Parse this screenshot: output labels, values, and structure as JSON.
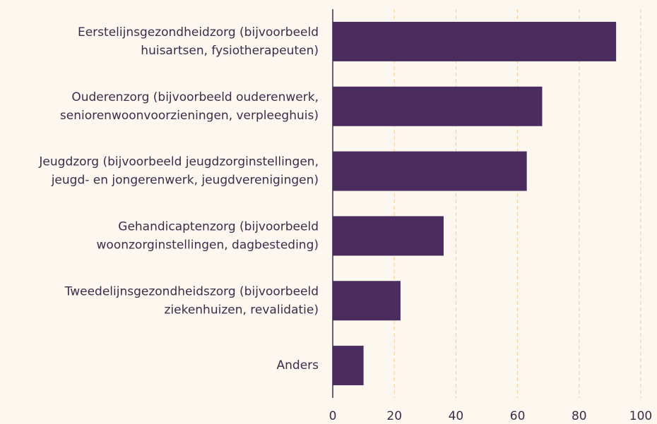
{
  "chart_data": {
    "type": "barh",
    "categories": [
      [
        "Eerstelijnsgezondheidzorg (bijvoorbeeld",
        "huisartsen, fysiotherapeuten)"
      ],
      [
        "Ouderenzorg (bijvoorbeeld ouderenwerk,",
        "seniorenwoonvoorzieningen, verpleeghuis)"
      ],
      [
        "Jeugdzorg (bijvoorbeeld jeugdzorginstellingen,",
        "jeugd- en jongerenwerk, jeugdverenigingen)"
      ],
      [
        "Gehandicaptenzorg (bijvoorbeeld",
        "woonzorginstellingen, dagbesteding)"
      ],
      [
        "Tweedelijnsgezondheidszorg (bijvoorbeeld",
        "ziekenhuizen, revalidatie)"
      ],
      [
        "Anders"
      ]
    ],
    "values": [
      92,
      68,
      63,
      36,
      22,
      10
    ],
    "color": "#4a2d5e",
    "xlim": [
      0,
      100
    ],
    "xticks": [
      0,
      20,
      40,
      60,
      80,
      100
    ],
    "grid": true
  }
}
